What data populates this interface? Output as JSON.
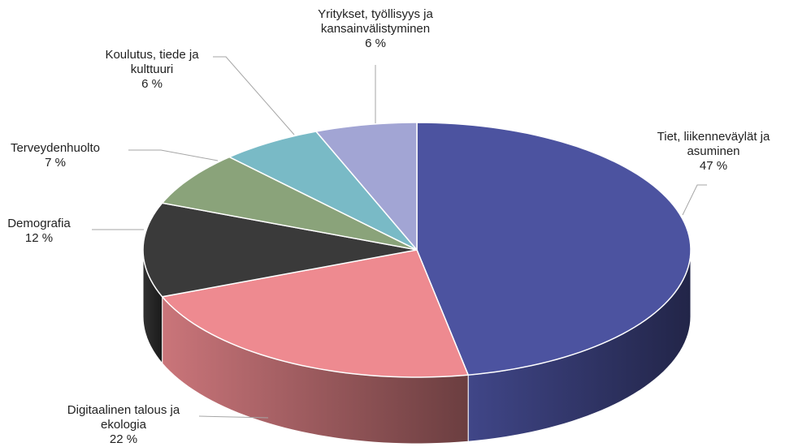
{
  "chart_data": {
    "type": "pie3d",
    "categories": [
      "Tiet, liikenneväylät ja asuminen",
      "Digitaalinen talous ja ekologia",
      "Demografia",
      "Terveydenhuolto",
      "Koulutus, tiede ja kulttuuri",
      "Yritykset, työllisyys ja kansainvälistyminen"
    ],
    "values": [
      47,
      22,
      12,
      7,
      6,
      6
    ],
    "value_labels": [
      "47 %",
      "22 %",
      "12 %",
      "7 %",
      "6 %",
      "6 %"
    ],
    "colors": [
      "#4c53a0",
      "#ee8a90",
      "#3a3a3a",
      "#8aa37a",
      "#79bac6",
      "#a2a5d4"
    ]
  }
}
